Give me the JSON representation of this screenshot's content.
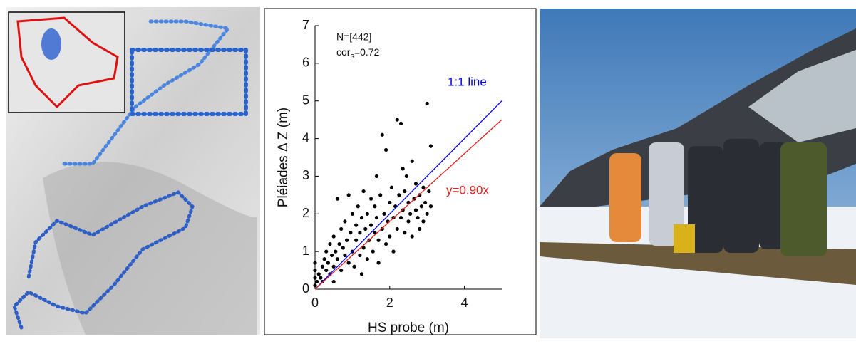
{
  "chart_data": {
    "type": "scatter",
    "x_label": "HS probe (m)",
    "y_label": "Pléiades Δ Z (m)",
    "n_text": "N=[442]",
    "cor_text": [
      "cor",
      "s",
      "=0.72"
    ],
    "xlim": [
      0,
      5
    ],
    "ylim": [
      0,
      7
    ],
    "xticks": [
      0,
      2,
      4
    ],
    "yticks": [
      0,
      1,
      2,
      3,
      4,
      5,
      6,
      7
    ],
    "color": "#000000",
    "lines": [
      {
        "name": "1:1 line",
        "slope": 1,
        "color": "#0000ff"
      },
      {
        "name": "y=0.90x",
        "slope": 0.9,
        "color": "#e0201b"
      }
    ],
    "x": [
      0,
      0,
      0,
      0,
      0.05,
      0.1,
      0.15,
      0.2,
      0.2,
      0.25,
      0.3,
      0.3,
      0.35,
      0.4,
      0.4,
      0.45,
      0.5,
      0.5,
      0.55,
      0.6,
      0.6,
      0.65,
      0.7,
      0.7,
      0.75,
      0.8,
      0.8,
      0.85,
      0.9,
      0.9,
      0.95,
      1.0,
      1.0,
      1.05,
      1.1,
      1.1,
      1.15,
      1.2,
      1.2,
      1.25,
      1.3,
      1.3,
      1.35,
      1.4,
      1.4,
      1.45,
      1.5,
      1.5,
      1.55,
      1.6,
      1.6,
      1.65,
      1.7,
      1.7,
      1.75,
      1.8,
      1.8,
      1.85,
      1.9,
      1.9,
      1.95,
      2.0,
      2.0,
      2.05,
      2.1,
      2.1,
      2.15,
      2.2,
      2.2,
      2.25,
      2.3,
      2.3,
      2.35,
      2.4,
      2.4,
      2.45,
      2.5,
      2.5,
      2.55,
      2.6,
      2.6,
      2.65,
      2.7,
      2.7,
      2.75,
      2.8,
      2.8,
      2.85,
      2.9,
      2.9,
      2.95,
      3.0,
      3.0,
      3.05,
      3.1,
      3.1,
      1.25,
      0.5,
      1.65,
      2.35
    ],
    "y": [
      0.1,
      0.3,
      0.5,
      0.7,
      0.2,
      0.4,
      0.3,
      0.6,
      0.2,
      0.8,
      0.5,
      1.0,
      0.7,
      0.4,
      1.2,
      0.9,
      0.6,
      1.4,
      1.0,
      0.8,
      2.4,
      1.2,
      0.5,
      1.6,
      1.1,
      0.9,
      1.8,
      1.3,
      0.7,
      2.5,
      1.5,
      1.0,
      2.0,
      0.6,
      1.3,
      1.7,
      2.2,
      0.9,
      1.5,
      1.9,
      1.1,
      2.6,
      1.6,
      0.8,
      2.0,
      1.3,
      1.7,
      2.4,
      1.0,
      1.5,
      2.2,
      1.9,
      0.7,
      1.3,
      2.5,
      1.6,
      4.1,
      2.0,
      1.2,
      3.7,
      1.8,
      2.3,
      1.4,
      2.7,
      1.9,
      1.0,
      2.2,
      4.5,
      1.6,
      2.5,
      4.4,
      1.9,
      2.1,
      1.5,
      2.6,
      3.0,
      1.8,
      2.3,
      2.0,
      3.4,
      1.4,
      2.4,
      2.1,
      2.8,
      1.9,
      2.5,
      1.6,
      2.2,
      2.7,
      1.8,
      2.3,
      4.93,
      2.0,
      2.6,
      3.8,
      2.2,
      0.4,
      0.2,
      3.0,
      3.2
    ]
  }
}
